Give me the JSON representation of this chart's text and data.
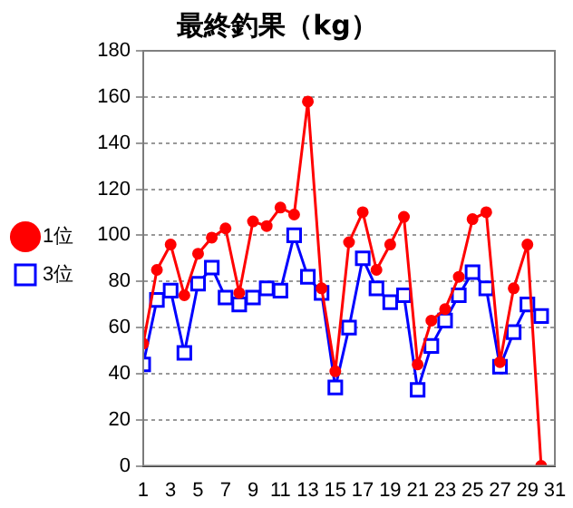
{
  "chart_data": {
    "type": "line",
    "title": "最終釣果（kg）",
    "x": [
      1,
      2,
      3,
      4,
      5,
      6,
      7,
      8,
      9,
      10,
      11,
      12,
      13,
      14,
      15,
      16,
      17,
      18,
      19,
      20,
      21,
      22,
      23,
      24,
      25,
      26,
      27,
      28,
      29,
      30
    ],
    "series": [
      {
        "name": "1位",
        "color": "#ff0000",
        "marker": "circle",
        "values": [
          53,
          85,
          96,
          74,
          92,
          99,
          103,
          75,
          106,
          104,
          112,
          109,
          158,
          77,
          41,
          97,
          110,
          85,
          96,
          108,
          44,
          63,
          68,
          82,
          107,
          110,
          45,
          77,
          96,
          0
        ]
      },
      {
        "name": "3位",
        "color": "#0000ff",
        "marker": "square",
        "values": [
          44,
          72,
          76,
          49,
          79,
          86,
          73,
          70,
          73,
          77,
          76,
          100,
          82,
          75,
          34,
          60,
          90,
          77,
          71,
          74,
          33,
          52,
          63,
          74,
          84,
          77,
          43,
          58,
          70,
          65
        ]
      }
    ],
    "xlim": [
      1,
      31
    ],
    "xticks": [
      1,
      3,
      5,
      7,
      9,
      11,
      13,
      15,
      17,
      19,
      21,
      23,
      25,
      27,
      29,
      31
    ],
    "ylim": [
      0,
      180
    ],
    "yticks": [
      0,
      20,
      40,
      60,
      80,
      100,
      120,
      140,
      160,
      180
    ],
    "grid": "y",
    "legend": "left"
  }
}
